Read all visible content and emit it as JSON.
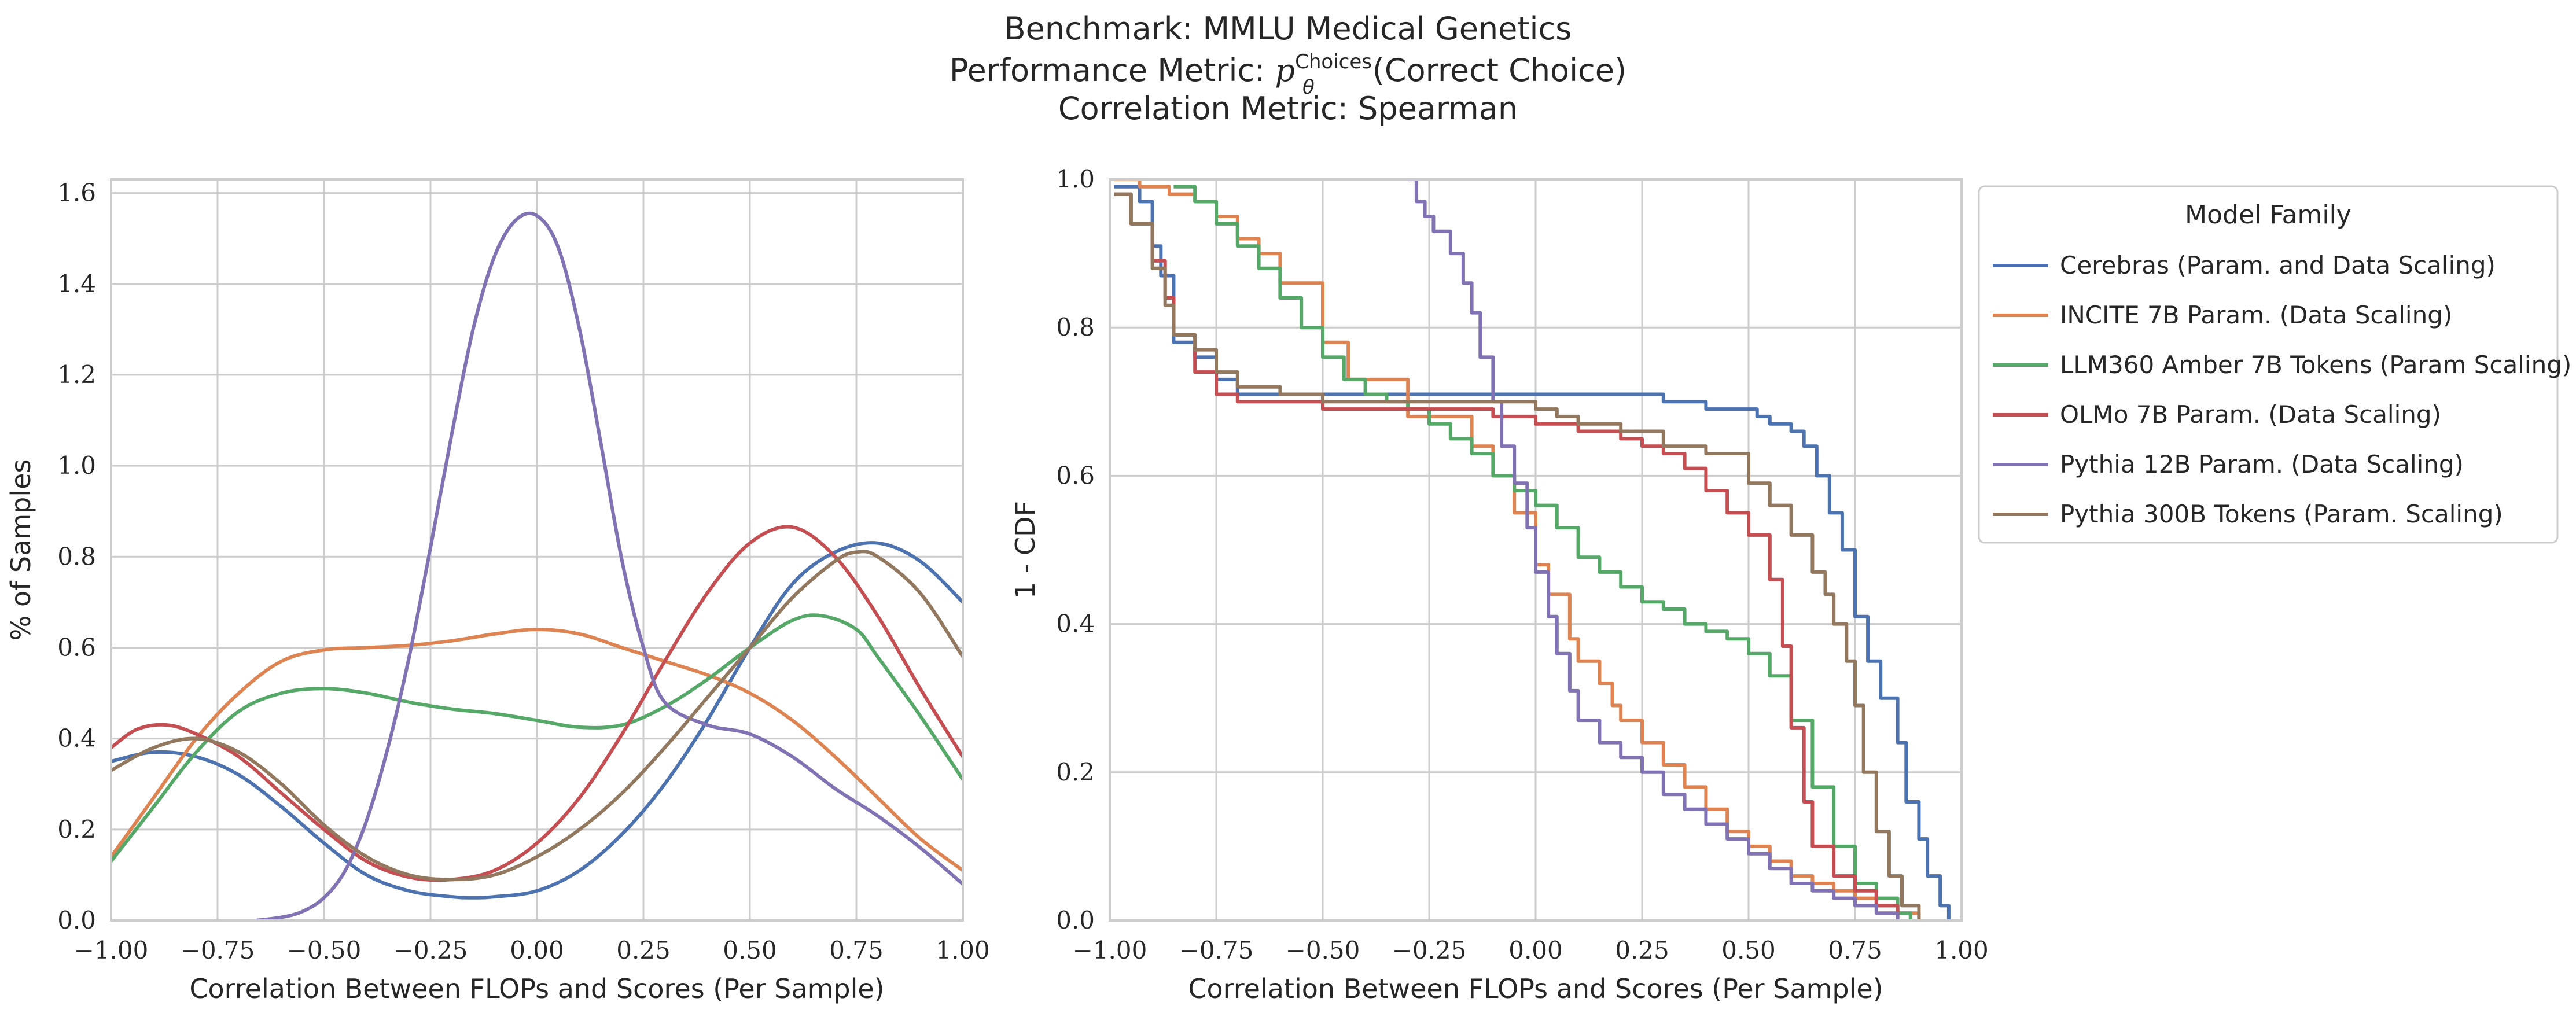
{
  "figure": {
    "title_lines": [
      "Benchmark: MMLU Medical Genetics",
      "Performance Metric: ",
      "Correlation Metric: Spearman"
    ],
    "metric_symbol": "p",
    "metric_subscript": "θ",
    "metric_superscript": "Choices",
    "metric_argument": "(Correct Choice)"
  },
  "chart_data": [
    {
      "type": "line",
      "xlabel": "Correlation Between FLOPs and Scores (Per Sample)",
      "ylabel": "% of Samples",
      "xlim": [
        -1.0,
        1.0
      ],
      "ylim": [
        0.0,
        1.63
      ],
      "xticks": [
        -1.0,
        -0.75,
        -0.5,
        -0.25,
        0.0,
        0.25,
        0.5,
        0.75,
        1.0
      ],
      "xtick_labels": [
        "−1.00",
        "−0.75",
        "−0.50",
        "−0.25",
        "0.00",
        "0.25",
        "0.50",
        "0.75",
        "1.00"
      ],
      "yticks": [
        0.0,
        0.2,
        0.4,
        0.6,
        0.8,
        1.0,
        1.2,
        1.4,
        1.6
      ],
      "ytick_labels": [
        "0.0",
        "0.2",
        "0.4",
        "0.6",
        "0.8",
        "1.0",
        "1.2",
        "1.4",
        "1.6"
      ],
      "grid": true,
      "series": [
        {
          "name": "Cerebras (Param. and Data Scaling)",
          "color": "#4c72b0",
          "x": [
            -1.0,
            -0.9,
            -0.8,
            -0.7,
            -0.6,
            -0.5,
            -0.4,
            -0.3,
            -0.2,
            -0.15,
            -0.1,
            0.0,
            0.1,
            0.2,
            0.3,
            0.4,
            0.5,
            0.6,
            0.7,
            0.8,
            0.9,
            1.0
          ],
          "y": [
            0.35,
            0.37,
            0.36,
            0.32,
            0.25,
            0.17,
            0.1,
            0.065,
            0.052,
            0.05,
            0.052,
            0.065,
            0.11,
            0.19,
            0.3,
            0.44,
            0.6,
            0.74,
            0.81,
            0.83,
            0.79,
            0.7
          ]
        },
        {
          "name": "INCITE 7B Param. (Data Scaling)",
          "color": "#dd8452",
          "x": [
            -1.0,
            -0.9,
            -0.8,
            -0.7,
            -0.6,
            -0.5,
            -0.4,
            -0.3,
            -0.2,
            -0.1,
            0.0,
            0.1,
            0.2,
            0.3,
            0.4,
            0.5,
            0.6,
            0.7,
            0.8,
            0.9,
            1.0
          ],
          "y": [
            0.14,
            0.27,
            0.4,
            0.5,
            0.57,
            0.595,
            0.6,
            0.605,
            0.615,
            0.63,
            0.64,
            0.63,
            0.6,
            0.57,
            0.54,
            0.5,
            0.44,
            0.36,
            0.27,
            0.18,
            0.11
          ]
        },
        {
          "name": "LLM360 Amber 7B Tokens (Param Scaling)",
          "color": "#55a868",
          "x": [
            -1.0,
            -0.9,
            -0.8,
            -0.7,
            -0.6,
            -0.5,
            -0.4,
            -0.3,
            -0.2,
            -0.1,
            0.0,
            0.1,
            0.2,
            0.3,
            0.4,
            0.5,
            0.6,
            0.67,
            0.75,
            0.8,
            0.9,
            1.0
          ],
          "y": [
            0.13,
            0.25,
            0.37,
            0.46,
            0.5,
            0.51,
            0.5,
            0.48,
            0.465,
            0.455,
            0.44,
            0.425,
            0.43,
            0.47,
            0.53,
            0.6,
            0.66,
            0.67,
            0.64,
            0.58,
            0.45,
            0.31
          ]
        },
        {
          "name": "OLMo 7B Param. (Data Scaling)",
          "color": "#c44e52",
          "x": [
            -1.0,
            -0.94,
            -0.87,
            -0.8,
            -0.7,
            -0.6,
            -0.5,
            -0.4,
            -0.3,
            -0.2,
            -0.1,
            0.0,
            0.1,
            0.2,
            0.3,
            0.4,
            0.5,
            0.6,
            0.7,
            0.8,
            0.9,
            1.0
          ],
          "y": [
            0.38,
            0.42,
            0.43,
            0.41,
            0.36,
            0.28,
            0.2,
            0.13,
            0.095,
            0.09,
            0.11,
            0.17,
            0.27,
            0.41,
            0.57,
            0.72,
            0.83,
            0.865,
            0.8,
            0.67,
            0.51,
            0.36
          ]
        },
        {
          "name": "Pythia 12B Param. (Data Scaling)",
          "color": "#8172b3",
          "x": [
            -0.66,
            -0.6,
            -0.55,
            -0.5,
            -0.45,
            -0.4,
            -0.35,
            -0.3,
            -0.25,
            -0.2,
            -0.15,
            -0.1,
            -0.05,
            0.0,
            0.05,
            0.1,
            0.15,
            0.2,
            0.25,
            0.3,
            0.4,
            0.5,
            0.6,
            0.7,
            0.8,
            0.9,
            1.0
          ],
          "y": [
            0.0,
            0.007,
            0.02,
            0.05,
            0.11,
            0.22,
            0.38,
            0.58,
            0.82,
            1.07,
            1.3,
            1.46,
            1.54,
            1.55,
            1.48,
            1.3,
            1.05,
            0.79,
            0.6,
            0.48,
            0.43,
            0.41,
            0.36,
            0.29,
            0.23,
            0.16,
            0.08
          ]
        },
        {
          "name": "Pythia 300B Tokens (Param. Scaling)",
          "color": "#937860",
          "x": [
            -1.0,
            -0.9,
            -0.8,
            -0.7,
            -0.6,
            -0.5,
            -0.4,
            -0.3,
            -0.2,
            -0.1,
            0.0,
            0.1,
            0.2,
            0.3,
            0.4,
            0.5,
            0.6,
            0.7,
            0.75,
            0.8,
            0.9,
            1.0
          ],
          "y": [
            0.33,
            0.38,
            0.4,
            0.37,
            0.3,
            0.21,
            0.14,
            0.1,
            0.09,
            0.1,
            0.14,
            0.2,
            0.28,
            0.38,
            0.49,
            0.6,
            0.71,
            0.79,
            0.81,
            0.8,
            0.72,
            0.58
          ]
        }
      ]
    },
    {
      "type": "line",
      "step": true,
      "xlabel": "Correlation Between FLOPs and Scores (Per Sample)",
      "ylabel": "1 - CDF",
      "xlim": [
        -1.0,
        1.0
      ],
      "ylim": [
        0.0,
        1.0
      ],
      "xticks": [
        -1.0,
        -0.75,
        -0.5,
        -0.25,
        0.0,
        0.25,
        0.5,
        0.75,
        1.0
      ],
      "xtick_labels": [
        "−1.00",
        "−0.75",
        "−0.50",
        "−0.25",
        "0.00",
        "0.25",
        "0.50",
        "0.75",
        "1.00"
      ],
      "yticks": [
        0.0,
        0.2,
        0.4,
        0.6,
        0.8,
        1.0
      ],
      "ytick_labels": [
        "0.0",
        "0.2",
        "0.4",
        "0.6",
        "0.8",
        "1.0"
      ],
      "grid": true,
      "legend": {
        "title": "Model Family",
        "placement": "outside-right-top"
      },
      "series": [
        {
          "name": "Cerebras (Param. and Data Scaling)",
          "color": "#4c72b0",
          "x": [
            -0.99,
            -0.93,
            -0.9,
            -0.88,
            -0.85,
            -0.8,
            -0.75,
            -0.7,
            0.3,
            0.4,
            0.52,
            0.55,
            0.6,
            0.63,
            0.66,
            0.69,
            0.72,
            0.75,
            0.78,
            0.81,
            0.85,
            0.87,
            0.9,
            0.92,
            0.95,
            0.97
          ],
          "y": [
            0.99,
            0.97,
            0.91,
            0.87,
            0.78,
            0.76,
            0.73,
            0.71,
            0.7,
            0.69,
            0.68,
            0.67,
            0.66,
            0.64,
            0.6,
            0.55,
            0.5,
            0.41,
            0.35,
            0.3,
            0.24,
            0.16,
            0.11,
            0.06,
            0.02,
            0.0
          ]
        },
        {
          "name": "INCITE 7B Param. (Data Scaling)",
          "color": "#dd8452",
          "x": [
            -0.99,
            -0.93,
            -0.86,
            -0.8,
            -0.75,
            -0.7,
            -0.65,
            -0.6,
            -0.5,
            -0.44,
            -0.3,
            -0.15,
            -0.1,
            -0.05,
            0.0,
            0.03,
            0.08,
            0.1,
            0.15,
            0.18,
            0.2,
            0.25,
            0.3,
            0.35,
            0.4,
            0.45,
            0.5,
            0.55,
            0.6,
            0.65,
            0.7,
            0.75,
            0.8,
            0.85,
            0.9
          ],
          "y": [
            1.0,
            0.99,
            0.98,
            0.97,
            0.95,
            0.92,
            0.9,
            0.86,
            0.78,
            0.73,
            0.68,
            0.64,
            0.6,
            0.55,
            0.48,
            0.44,
            0.38,
            0.35,
            0.32,
            0.29,
            0.27,
            0.24,
            0.21,
            0.18,
            0.15,
            0.12,
            0.1,
            0.08,
            0.06,
            0.05,
            0.04,
            0.03,
            0.02,
            0.01,
            0.0
          ]
        },
        {
          "name": "LLM360 Amber 7B Tokens (Param Scaling)",
          "color": "#55a868",
          "x": [
            -0.85,
            -0.8,
            -0.75,
            -0.7,
            -0.65,
            -0.6,
            -0.55,
            -0.5,
            -0.45,
            -0.4,
            -0.35,
            -0.3,
            -0.25,
            -0.2,
            -0.15,
            -0.1,
            -0.05,
            0.0,
            0.05,
            0.1,
            0.15,
            0.2,
            0.25,
            0.3,
            0.35,
            0.4,
            0.45,
            0.5,
            0.55,
            0.6,
            0.65,
            0.7,
            0.75,
            0.8,
            0.85,
            0.88
          ],
          "y": [
            0.99,
            0.97,
            0.94,
            0.91,
            0.88,
            0.84,
            0.8,
            0.76,
            0.73,
            0.71,
            0.7,
            0.69,
            0.67,
            0.65,
            0.63,
            0.6,
            0.58,
            0.56,
            0.53,
            0.49,
            0.47,
            0.45,
            0.43,
            0.42,
            0.4,
            0.39,
            0.38,
            0.36,
            0.33,
            0.27,
            0.18,
            0.1,
            0.05,
            0.03,
            0.01,
            0.0
          ]
        },
        {
          "name": "OLMo 7B Param. (Data Scaling)",
          "color": "#c44e52",
          "x": [
            -0.99,
            -0.95,
            -0.9,
            -0.87,
            -0.85,
            -0.8,
            -0.75,
            -0.7,
            -0.5,
            -0.3,
            -0.1,
            0.0,
            0.1,
            0.2,
            0.25,
            0.3,
            0.35,
            0.4,
            0.45,
            0.5,
            0.55,
            0.58,
            0.6,
            0.63,
            0.65,
            0.7,
            0.75,
            0.8,
            0.85
          ],
          "y": [
            0.98,
            0.94,
            0.89,
            0.84,
            0.79,
            0.74,
            0.71,
            0.7,
            0.69,
            0.69,
            0.68,
            0.67,
            0.66,
            0.65,
            0.64,
            0.63,
            0.61,
            0.58,
            0.55,
            0.52,
            0.46,
            0.37,
            0.26,
            0.16,
            0.1,
            0.06,
            0.04,
            0.02,
            0.0
          ]
        },
        {
          "name": "Pythia 12B Param. (Data Scaling)",
          "color": "#8172b3",
          "x": [
            -0.3,
            -0.28,
            -0.26,
            -0.24,
            -0.2,
            -0.17,
            -0.15,
            -0.13,
            -0.1,
            -0.08,
            -0.05,
            -0.02,
            0.0,
            0.03,
            0.05,
            0.08,
            0.1,
            0.15,
            0.2,
            0.25,
            0.3,
            0.35,
            0.4,
            0.45,
            0.5,
            0.55,
            0.6,
            0.65,
            0.7,
            0.75,
            0.8,
            0.85
          ],
          "y": [
            1.0,
            0.97,
            0.95,
            0.93,
            0.9,
            0.86,
            0.82,
            0.76,
            0.7,
            0.64,
            0.59,
            0.53,
            0.47,
            0.41,
            0.36,
            0.31,
            0.27,
            0.24,
            0.22,
            0.2,
            0.17,
            0.15,
            0.13,
            0.11,
            0.09,
            0.07,
            0.05,
            0.04,
            0.03,
            0.02,
            0.01,
            0.0
          ]
        },
        {
          "name": "Pythia 300B Tokens (Param. Scaling)",
          "color": "#937860",
          "x": [
            -0.99,
            -0.95,
            -0.9,
            -0.87,
            -0.85,
            -0.8,
            -0.75,
            -0.7,
            -0.6,
            -0.5,
            -0.3,
            -0.1,
            0.0,
            0.05,
            0.1,
            0.2,
            0.3,
            0.4,
            0.5,
            0.55,
            0.6,
            0.65,
            0.68,
            0.7,
            0.73,
            0.75,
            0.77,
            0.8,
            0.83,
            0.86,
            0.9
          ],
          "y": [
            0.98,
            0.94,
            0.88,
            0.83,
            0.79,
            0.77,
            0.74,
            0.72,
            0.71,
            0.7,
            0.7,
            0.7,
            0.69,
            0.68,
            0.67,
            0.66,
            0.64,
            0.63,
            0.59,
            0.56,
            0.52,
            0.47,
            0.44,
            0.4,
            0.35,
            0.29,
            0.2,
            0.12,
            0.06,
            0.02,
            0.0
          ]
        }
      ]
    }
  ]
}
